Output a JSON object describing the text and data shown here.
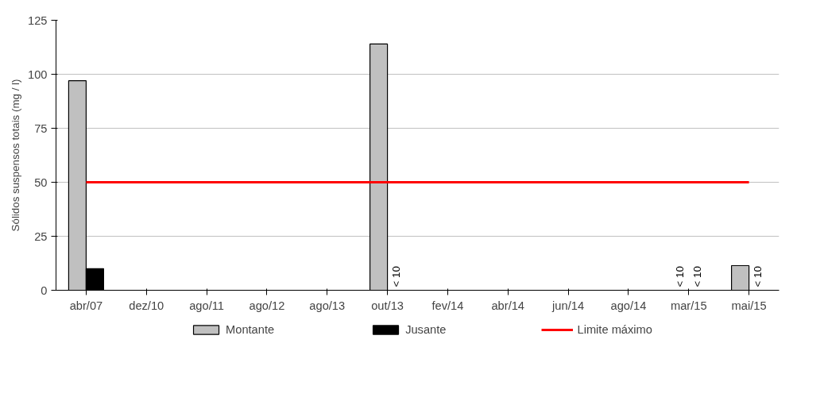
{
  "chart_data": {
    "type": "bar",
    "ylabel": "Sólidos suspensos totais (mg / l)",
    "categories": [
      "abr/07",
      "dez/10",
      "ago/11",
      "ago/12",
      "ago/13",
      "out/13",
      "fev/14",
      "abr/14",
      "jun/14",
      "ago/14",
      "mar/15",
      "mai/15"
    ],
    "series": [
      {
        "name": "Montante",
        "color": "#c0c0c0",
        "values": [
          97,
          null,
          null,
          null,
          null,
          114,
          null,
          null,
          null,
          null,
          null,
          11.4
        ],
        "value_labels": [
          null,
          null,
          null,
          null,
          null,
          null,
          null,
          null,
          null,
          null,
          "< 10",
          null
        ]
      },
      {
        "name": "Jusante",
        "color": "#000000",
        "values": [
          10,
          null,
          null,
          null,
          null,
          null,
          null,
          null,
          null,
          null,
          null,
          null
        ],
        "value_labels": [
          null,
          null,
          null,
          null,
          null,
          "< 10",
          null,
          null,
          null,
          null,
          "< 10",
          "< 10"
        ]
      },
      {
        "name": "Limite máximo",
        "type": "line",
        "color": "#ff0000",
        "values": [
          50,
          50,
          50,
          50,
          50,
          50,
          50,
          50,
          50,
          50,
          50,
          50
        ]
      }
    ],
    "ylim": [
      0,
      125
    ],
    "yticks": [
      0,
      25,
      50,
      75,
      100,
      125
    ],
    "grid": "y",
    "legend": "bottom"
  }
}
